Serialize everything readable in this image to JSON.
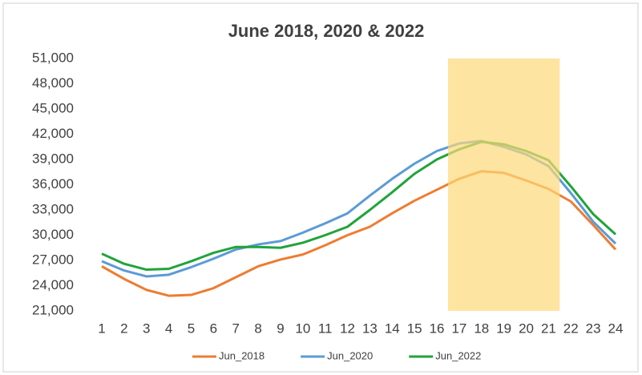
{
  "chart_data": {
    "type": "line",
    "title": "June 2018, 2020 & 2022",
    "categories": [
      "1",
      "2",
      "3",
      "4",
      "5",
      "6",
      "7",
      "8",
      "9",
      "10",
      "11",
      "12",
      "13",
      "14",
      "15",
      "16",
      "17",
      "18",
      "19",
      "20",
      "21",
      "22",
      "23",
      "24"
    ],
    "series": [
      {
        "name": "Jun_2018",
        "color": "#ed7d31",
        "values": [
          26300,
          24800,
          23500,
          22800,
          22900,
          23700,
          25000,
          26300,
          27100,
          27700,
          28800,
          30000,
          31000,
          32600,
          34100,
          35400,
          36700,
          37600,
          37400,
          36500,
          35500,
          34000,
          31200,
          28300
        ]
      },
      {
        "name": "Jun_2020",
        "color": "#5b9bd5",
        "values": [
          26900,
          25800,
          25100,
          25300,
          26200,
          27200,
          28300,
          28900,
          29300,
          30300,
          31400,
          32600,
          34700,
          36700,
          38500,
          40000,
          40900,
          41200,
          40500,
          39600,
          38200,
          35000,
          31600,
          29000
        ]
      },
      {
        "name": "Jun_2022",
        "color": "#22a33a",
        "values": [
          27800,
          26600,
          25900,
          26000,
          26900,
          27900,
          28600,
          28600,
          28500,
          29100,
          30000,
          31000,
          33000,
          35100,
          37300,
          39000,
          40200,
          41100,
          40800,
          40000,
          38900,
          35800,
          32500,
          30100
        ]
      }
    ],
    "ylim": [
      21000,
      51000
    ],
    "yticks": [
      {
        "value": 21000,
        "label": "21,000"
      },
      {
        "value": 24000,
        "label": "24,000"
      },
      {
        "value": 27000,
        "label": "27,000"
      },
      {
        "value": 30000,
        "label": "30,000"
      },
      {
        "value": 33000,
        "label": "33,000"
      },
      {
        "value": 36000,
        "label": "36,000"
      },
      {
        "value": 39000,
        "label": "39,000"
      },
      {
        "value": 42000,
        "label": "42,000"
      },
      {
        "value": 45000,
        "label": "45,000"
      },
      {
        "value": 48000,
        "label": "48,000"
      },
      {
        "value": 51000,
        "label": "51,000"
      }
    ],
    "highlight": {
      "from": "17",
      "to": "21",
      "color": "#fcd977"
    },
    "legend": "bottom"
  }
}
